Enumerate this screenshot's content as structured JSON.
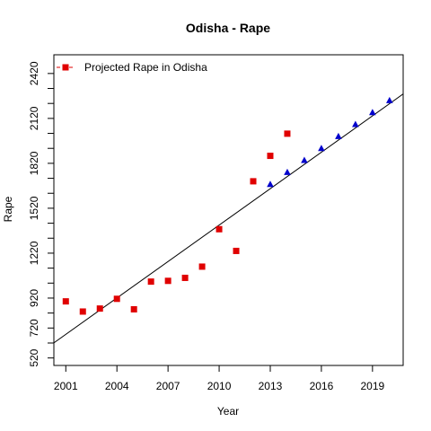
{
  "chart_data": {
    "type": "scatter",
    "title": "Odisha  -  Rape",
    "xlabel": "Year",
    "ylabel": "Rape",
    "xlim": [
      2000.3,
      2020.8
    ],
    "ylim": [
      470,
      2545
    ],
    "x_ticks": [
      2001,
      2004,
      2007,
      2010,
      2013,
      2016,
      2019
    ],
    "y_ticks": [
      520,
      720,
      920,
      1220,
      1520,
      1820,
      2120,
      2420
    ],
    "y_minor_ticks": [
      620,
      820,
      1020,
      1120,
      1320,
      1420,
      1620,
      1720,
      1920,
      2020,
      2220,
      2320
    ],
    "legend": {
      "position": "top-left",
      "entries": [
        "Projected Rape in Odisha"
      ]
    },
    "colors": {
      "observed": "#e00000",
      "projected": "#0000cc",
      "trend": "#000000"
    },
    "series": [
      {
        "name": "Projected Rape in Odisha",
        "marker": "square",
        "x": [
          2001,
          2002,
          2003,
          2004,
          2005,
          2006,
          2007,
          2008,
          2009,
          2010,
          2011,
          2012,
          2013,
          2014
        ],
        "y": [
          898,
          830,
          850,
          915,
          845,
          1030,
          1035,
          1055,
          1130,
          1380,
          1235,
          1700,
          1870,
          2018
        ]
      },
      {
        "marker": "triangle",
        "x": [
          2013,
          2014,
          2015,
          2016,
          2017,
          2018,
          2019,
          2020
        ],
        "y": [
          1680,
          1760,
          1840,
          1920,
          2000,
          2080,
          2160,
          2240
        ]
      }
    ],
    "trend_line": {
      "x": [
        2000.3,
        2020.8
      ],
      "y": [
        621,
        2283
      ]
    }
  }
}
